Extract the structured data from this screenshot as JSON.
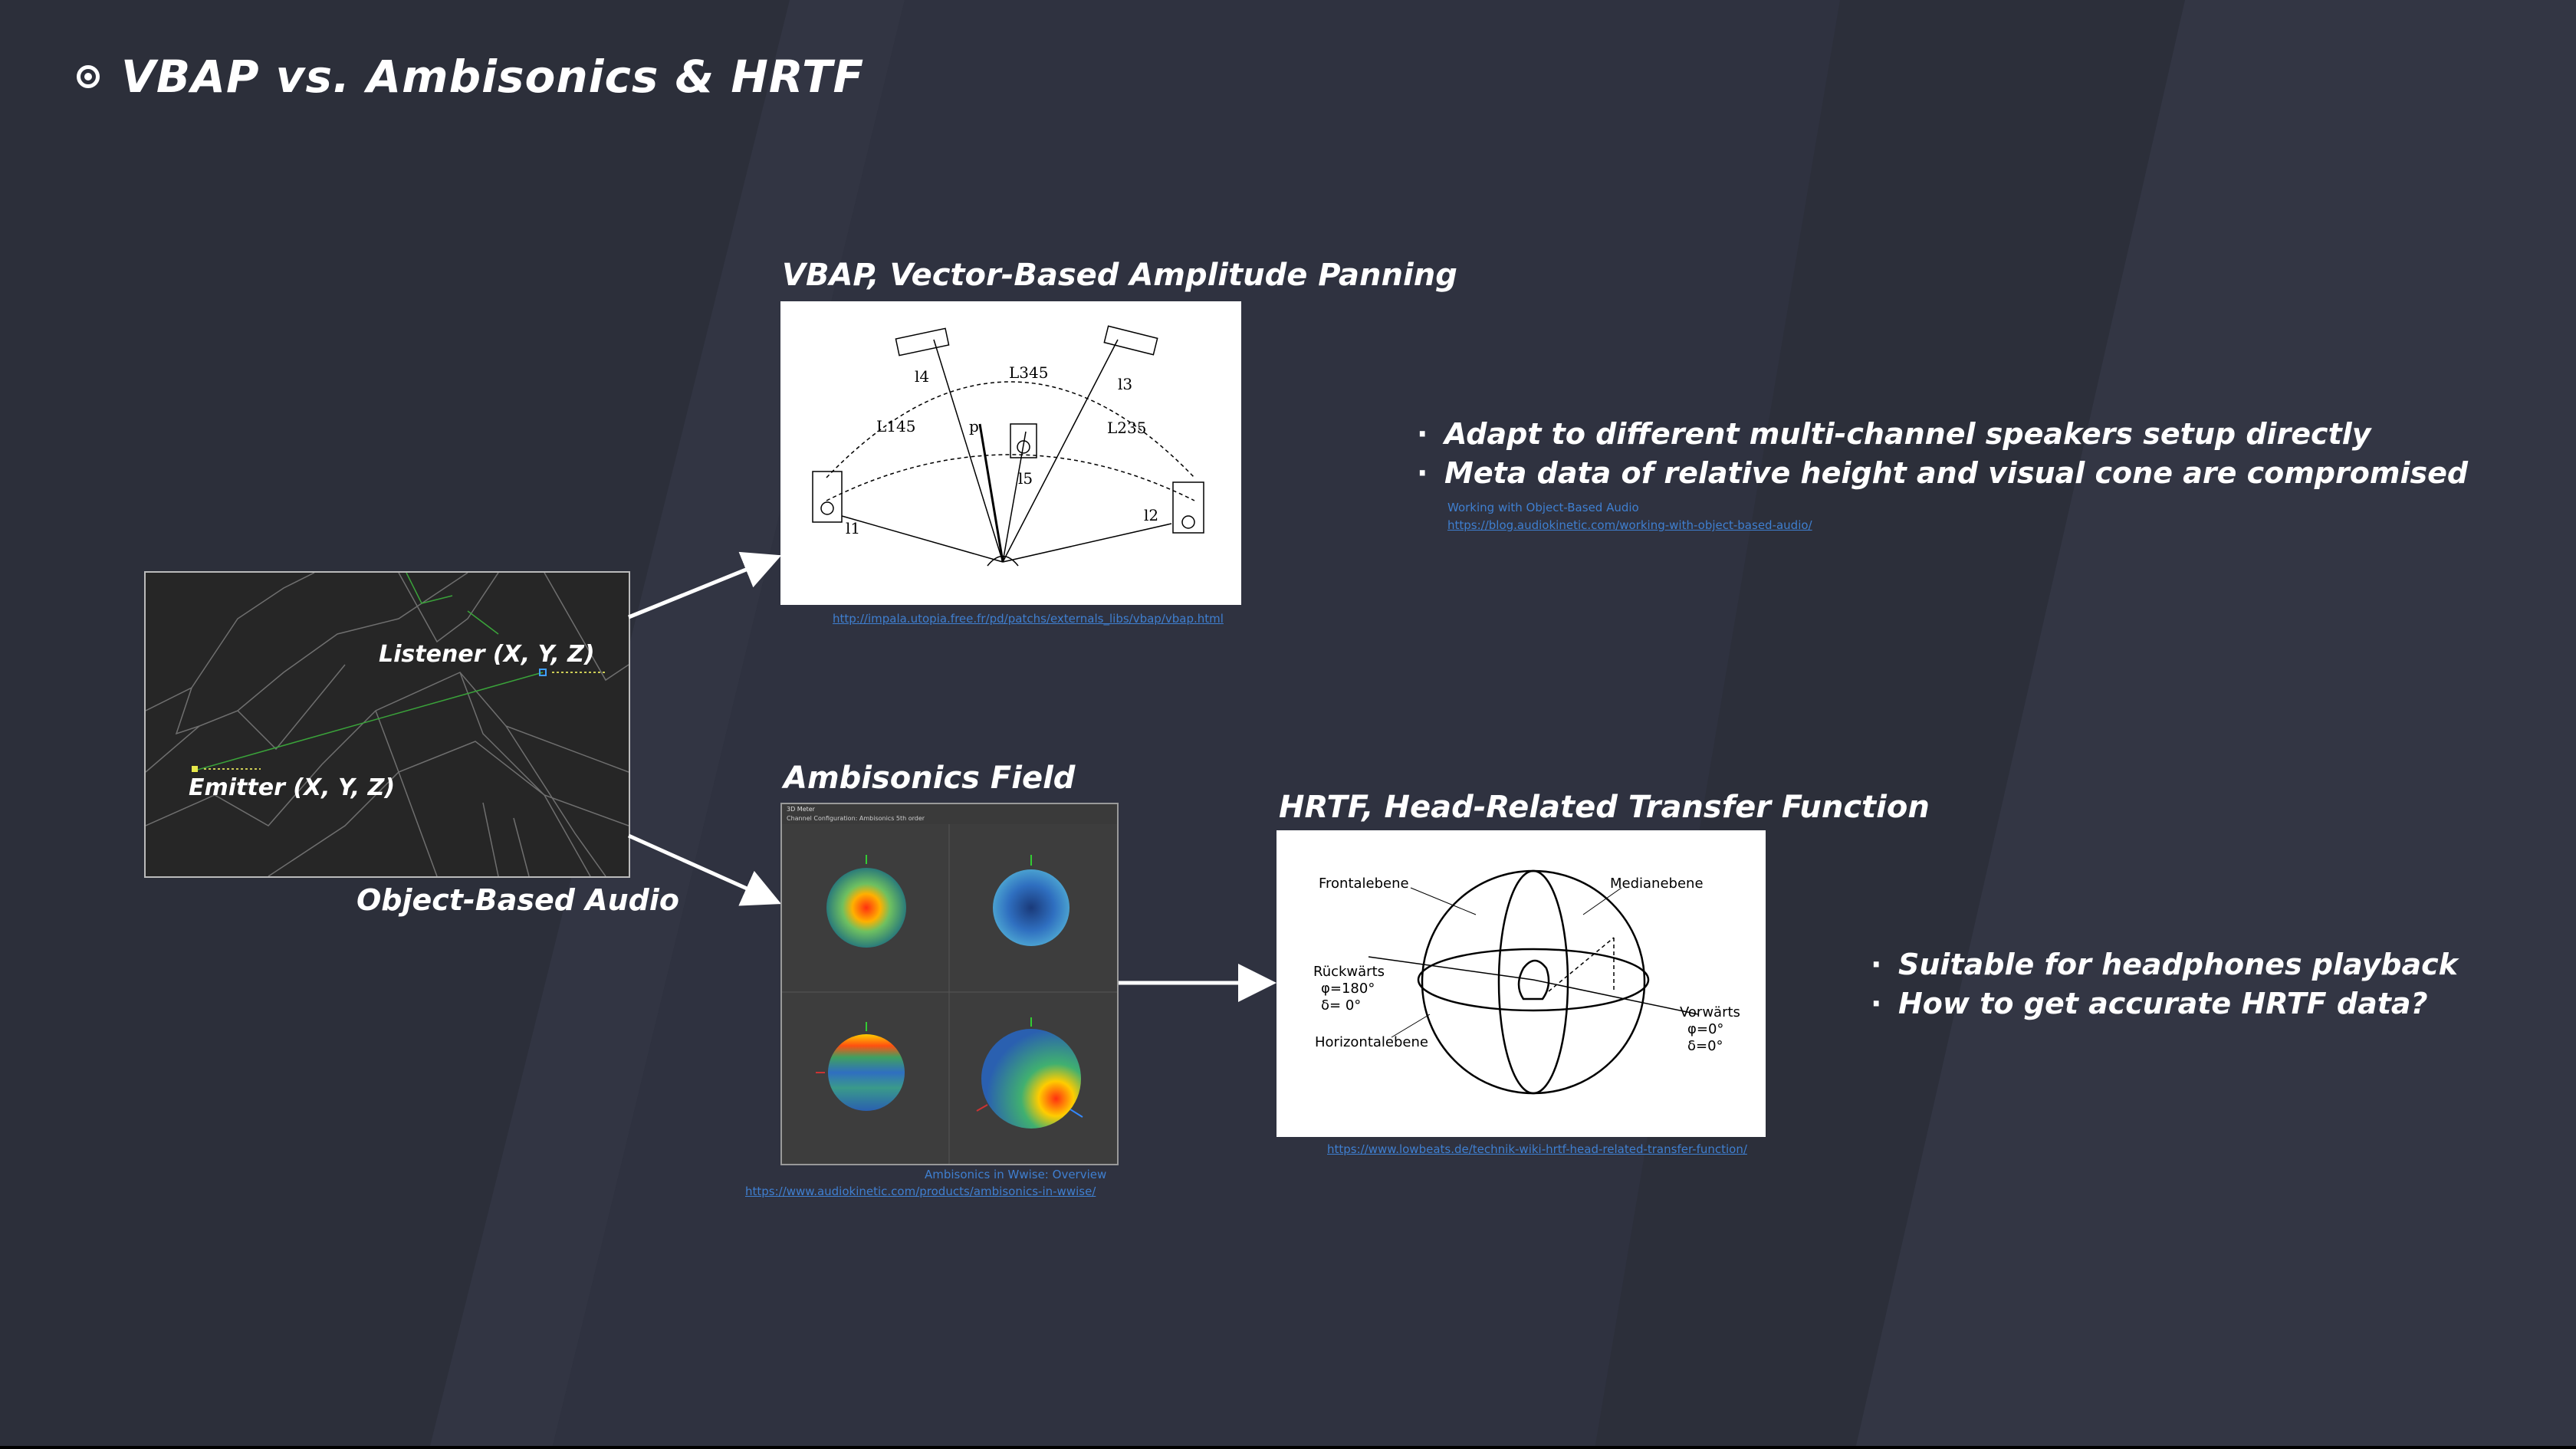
{
  "slide": {
    "title": "VBAP vs. Ambisonics & HRTF",
    "title_icon": "radio-button-icon"
  },
  "object_audio": {
    "caption": "Object-Based Audio",
    "listener_label": "Listener (X, Y, Z)",
    "emitter_label": "Emitter (X, Y, Z)"
  },
  "vbap": {
    "title": "VBAP, Vector-Based Amplitude Panning",
    "link": "http://impala.utopia.free.fr/pd/patchs/externals_libs/vbap/vbap.html",
    "diagram_labels": [
      "l4",
      "L345",
      "l3",
      "L145",
      "p",
      "L235",
      "l5",
      "l1",
      "l2"
    ],
    "bullets": [
      "Adapt to different multi-channel speakers setup directly",
      "Meta data of relative height and visual cone are compromised"
    ],
    "ref_title": "Working with Object-Based Audio",
    "ref_link": "https://blog.audiokinetic.com/working-with-object-based-audio/"
  },
  "ambisonics": {
    "title": "Ambisonics Field",
    "window_title": "3D Meter",
    "window_subtitle": "Channel Configuration: Ambisonics 5th order",
    "ref_title": "Ambisonics in Wwise: Overview",
    "ref_link": "https://www.audiokinetic.com/products/ambisonics-in-wwise/"
  },
  "hrtf": {
    "title": "HRTF, Head-Related Transfer Function",
    "link": "https://www.lowbeats.de/technik-wiki-hrtf-head-related-transfer-function/",
    "diagram": {
      "frontal": "Frontalebene",
      "median": "Medianebene",
      "back": "Rückwärts",
      "back_phi": "φ=180°",
      "back_delta": "δ=  0°",
      "horizontal": "Horizontalebene",
      "forward": "Vorwärts",
      "fwd_phi": "φ=0°",
      "fwd_delta": "δ=0°"
    },
    "bullets": [
      "Suitable for headphones playback",
      "How to get accurate HRTF data?"
    ]
  },
  "colors": {
    "background": "#2c2f3a",
    "link": "#3f7fd0",
    "text": "#ffffff"
  }
}
